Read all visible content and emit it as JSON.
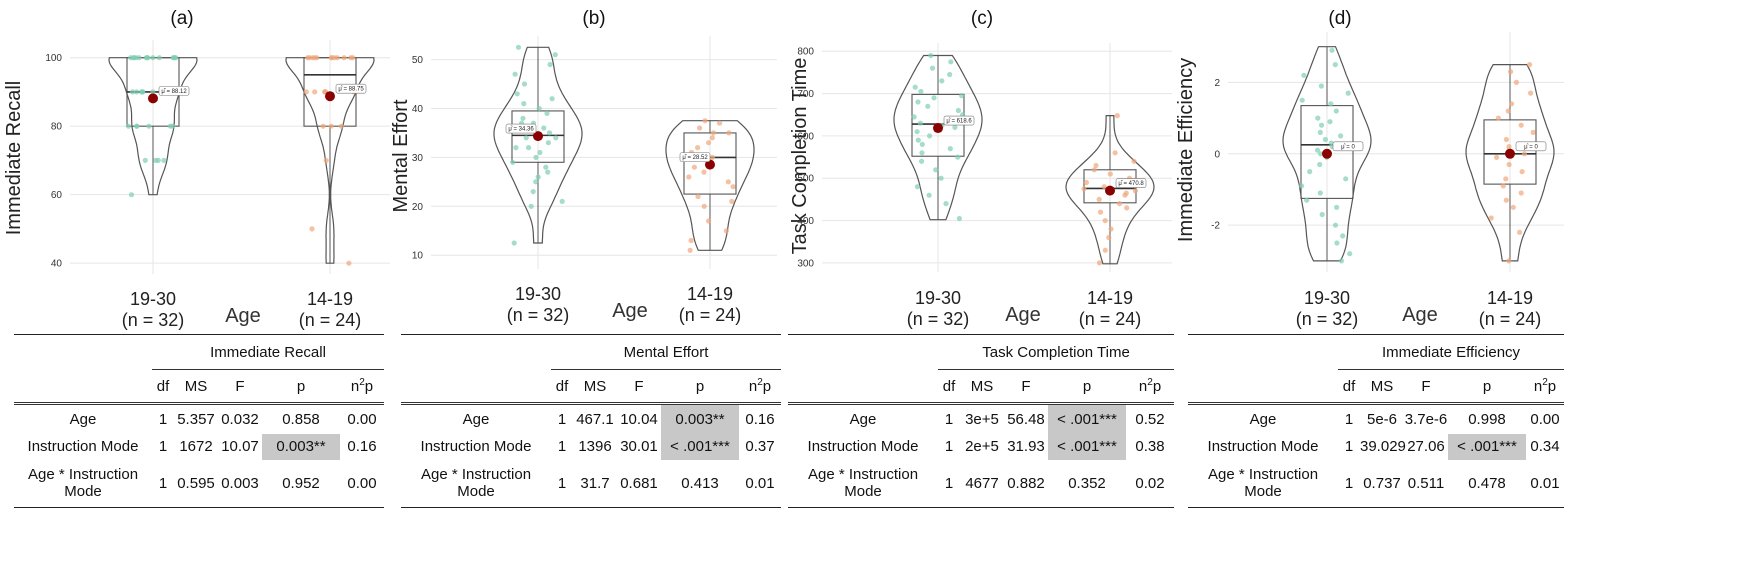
{
  "chart_data": [
    {
      "type": "violin",
      "panel_label": "(a)",
      "ylabel": "Immediate Recall",
      "xlabel": "Age",
      "ylim": [
        38,
        104
      ],
      "yticks": [
        "40",
        "60",
        "80",
        "100"
      ],
      "groups": [
        {
          "name": "19-30",
          "n_label": "(n = 32)",
          "mean": 88.12,
          "mean_label": "μ̂ = 88.12",
          "min": 60,
          "q1": 80,
          "median": 90,
          "q3": 100,
          "max": 100,
          "color": "#7fcfb0",
          "points": [
            100,
            100,
            100,
            100,
            100,
            100,
            100,
            100,
            100,
            100,
            100,
            100,
            100,
            90,
            90,
            90,
            90,
            90,
            90,
            90,
            80,
            80,
            80,
            80,
            80,
            80,
            70,
            70,
            70,
            70,
            60,
            100
          ]
        },
        {
          "name": "14-19",
          "n_label": "(n = 24)",
          "mean": 88.75,
          "mean_label": "μ̂ = 88.75",
          "min": 40,
          "q1": 80,
          "median": 95,
          "q3": 100,
          "max": 100,
          "color": "#f0a77a",
          "points": [
            100,
            100,
            100,
            100,
            100,
            100,
            100,
            100,
            100,
            100,
            100,
            90,
            90,
            90,
            90,
            90,
            90,
            80,
            80,
            80,
            70,
            50,
            40,
            100
          ]
        }
      ]
    },
    {
      "type": "violin",
      "panel_label": "(b)",
      "ylabel": "Mental Effort",
      "xlabel": "Age",
      "ylim": [
        8,
        54
      ],
      "yticks": [
        "10",
        "20",
        "30",
        "40",
        "50"
      ],
      "groups": [
        {
          "name": "19-30",
          "n_label": "(n = 32)",
          "mean": 34.36,
          "mean_label": "μ̂ = 34.36",
          "min": 12.5,
          "q1": 29,
          "median": 34.5,
          "q3": 39.5,
          "max": 52.5,
          "color": "#7fcfb0",
          "points": [
            52.5,
            51,
            49,
            47,
            45,
            43,
            42,
            41,
            40,
            39,
            38,
            37,
            37,
            36,
            36,
            35,
            34,
            34,
            33,
            32,
            32,
            31,
            30,
            29,
            28,
            27,
            26,
            25,
            23,
            21,
            20,
            12.5
          ]
        },
        {
          "name": "14-19",
          "n_label": "(n = 24)",
          "mean": 28.52,
          "mean_label": "μ̂ = 28.52",
          "min": 11,
          "q1": 22.5,
          "median": 30,
          "q3": 35,
          "max": 37.5,
          "color": "#f0a77a",
          "points": [
            37.5,
            37,
            36,
            35,
            35,
            34,
            33,
            32,
            31,
            30,
            30,
            29,
            28,
            27,
            26,
            25,
            24,
            22,
            21,
            20,
            17,
            15,
            13,
            11
          ]
        }
      ]
    },
    {
      "type": "violin",
      "panel_label": "(c)",
      "ylabel": "Task Completion Time",
      "xlabel": "Age",
      "ylim": [
        288,
        810
      ],
      "yticks": [
        "300",
        "400",
        "500",
        "600",
        "700",
        "800"
      ],
      "groups": [
        {
          "name": "19-30",
          "n_label": "(n = 32)",
          "mean": 618.6,
          "mean_label": "μ̂ = 618.6",
          "min": 402,
          "q1": 552,
          "median": 628,
          "q3": 698,
          "max": 790,
          "color": "#7fcfb0",
          "points": [
            790,
            775,
            760,
            745,
            730,
            715,
            705,
            695,
            690,
            680,
            670,
            660,
            650,
            645,
            640,
            630,
            625,
            620,
            610,
            600,
            590,
            580,
            570,
            560,
            550,
            540,
            520,
            500,
            480,
            460,
            440,
            405
          ]
        },
        {
          "name": "14-19",
          "n_label": "(n = 24)",
          "mean": 470.8,
          "mean_label": "μ̂ = 470.8",
          "min": 298,
          "q1": 442,
          "median": 476,
          "q3": 520,
          "max": 648,
          "color": "#f0a77a",
          "points": [
            648,
            560,
            540,
            530,
            520,
            510,
            500,
            495,
            490,
            485,
            480,
            475,
            470,
            465,
            460,
            450,
            440,
            430,
            420,
            400,
            380,
            360,
            330,
            300
          ]
        }
      ]
    },
    {
      "type": "violin",
      "panel_label": "(d)",
      "ylabel": "Immediate Efficiency",
      "xlabel": "Age",
      "ylim": [
        -3.2,
        3.3
      ],
      "yticks": [
        "-2",
        "0",
        "2"
      ],
      "groups": [
        {
          "name": "19-30",
          "n_label": "(n = 32)",
          "mean": 0,
          "mean_label": "μ̂ = 0",
          "min": -3.0,
          "q1": -1.25,
          "median": 0.25,
          "q3": 1.35,
          "max": 3.0,
          "color": "#7fcfb0",
          "points": [
            2.9,
            2.5,
            2.2,
            1.9,
            1.7,
            1.5,
            1.4,
            1.2,
            1.0,
            0.9,
            0.8,
            0.6,
            0.5,
            0.4,
            0.3,
            0.2,
            0.1,
            0.0,
            -0.1,
            -0.3,
            -0.5,
            -0.7,
            -0.9,
            -1.1,
            -1.3,
            -1.5,
            -1.7,
            -2.0,
            -2.3,
            -2.5,
            -2.8,
            -3.0
          ]
        },
        {
          "name": "14-19",
          "n_label": "(n = 24)",
          "mean": 0,
          "mean_label": "μ̂ = 0",
          "min": -3.0,
          "q1": -0.85,
          "median": 0.0,
          "q3": 0.95,
          "max": 2.5,
          "color": "#f0a77a",
          "points": [
            2.5,
            2.3,
            2.0,
            1.7,
            1.4,
            1.2,
            1.0,
            0.8,
            0.6,
            0.4,
            0.2,
            0.1,
            0.0,
            -0.1,
            -0.3,
            -0.5,
            -0.7,
            -0.9,
            -1.1,
            -1.3,
            -1.5,
            -1.8,
            -2.2,
            -3.0
          ]
        }
      ]
    }
  ],
  "tables": [
    {
      "dv": "Immediate Recall",
      "headers": [
        "df",
        "MS",
        "F",
        "p",
        "n2p"
      ],
      "rows": [
        {
          "label": "Age",
          "df": "1",
          "ms": "5.357",
          "f": "0.032",
          "p": "0.858",
          "n2p": "0.00",
          "highlight": false
        },
        {
          "label": "Instruction Mode",
          "df": "1",
          "ms": "1672",
          "f": "10.07",
          "p": "0.003**",
          "n2p": "0.16",
          "highlight": true
        },
        {
          "label": "Age * Instruction Mode",
          "df": "1",
          "ms": "0.595",
          "f": "0.003",
          "p": "0.952",
          "n2p": "0.00",
          "highlight": false
        }
      ]
    },
    {
      "dv": "Mental Effort",
      "headers": [
        "df",
        "MS",
        "F",
        "p",
        "n2p"
      ],
      "rows": [
        {
          "label": "Age",
          "df": "1",
          "ms": "467.1",
          "f": "10.04",
          "p": "0.003**",
          "n2p": "0.16",
          "highlight": true
        },
        {
          "label": "Instruction Mode",
          "df": "1",
          "ms": "1396",
          "f": "30.01",
          "p": "< .001***",
          "n2p": "0.37",
          "highlight": true
        },
        {
          "label": "Age * Instruction Mode",
          "df": "1",
          "ms": "31.7",
          "f": "0.681",
          "p": "0.413",
          "n2p": "0.01",
          "highlight": false
        }
      ]
    },
    {
      "dv": "Task Completion Time",
      "headers": [
        "df",
        "MS",
        "F",
        "p",
        "n2p"
      ],
      "rows": [
        {
          "label": "Age",
          "df": "1",
          "ms": "3e+5",
          "f": "56.48",
          "p": "< .001***",
          "n2p": "0.52",
          "highlight": true
        },
        {
          "label": "Instruction Mode",
          "df": "1",
          "ms": "2e+5",
          "f": "31.93",
          "p": "< .001***",
          "n2p": "0.38",
          "highlight": true
        },
        {
          "label": "Age * Instruction Mode",
          "df": "1",
          "ms": "4677",
          "f": "0.882",
          "p": "0.352",
          "n2p": "0.02",
          "highlight": false
        }
      ]
    },
    {
      "dv": "Immediate Efficiency",
      "headers": [
        "df",
        "MS",
        "F",
        "p",
        "n2p"
      ],
      "rows": [
        {
          "label": "Age",
          "df": "1",
          "ms": "5e-6",
          "f": "3.7e-6",
          "p": "0.998",
          "n2p": "0.00",
          "highlight": false
        },
        {
          "label": "Instruction Mode",
          "df": "1",
          "ms": "39.029",
          "f": "27.06",
          "p": "< .001***",
          "n2p": "0.34",
          "highlight": true
        },
        {
          "label": "Age * Instruction Mode",
          "df": "1",
          "ms": "0.737",
          "f": "0.511",
          "p": "0.478",
          "n2p": "0.01",
          "highlight": false
        }
      ]
    }
  ],
  "colors": {
    "mean_dot": "#8b0000",
    "outline": "#555555",
    "grid": "#e6e6e6",
    "highlight": "#c8c8c8"
  }
}
